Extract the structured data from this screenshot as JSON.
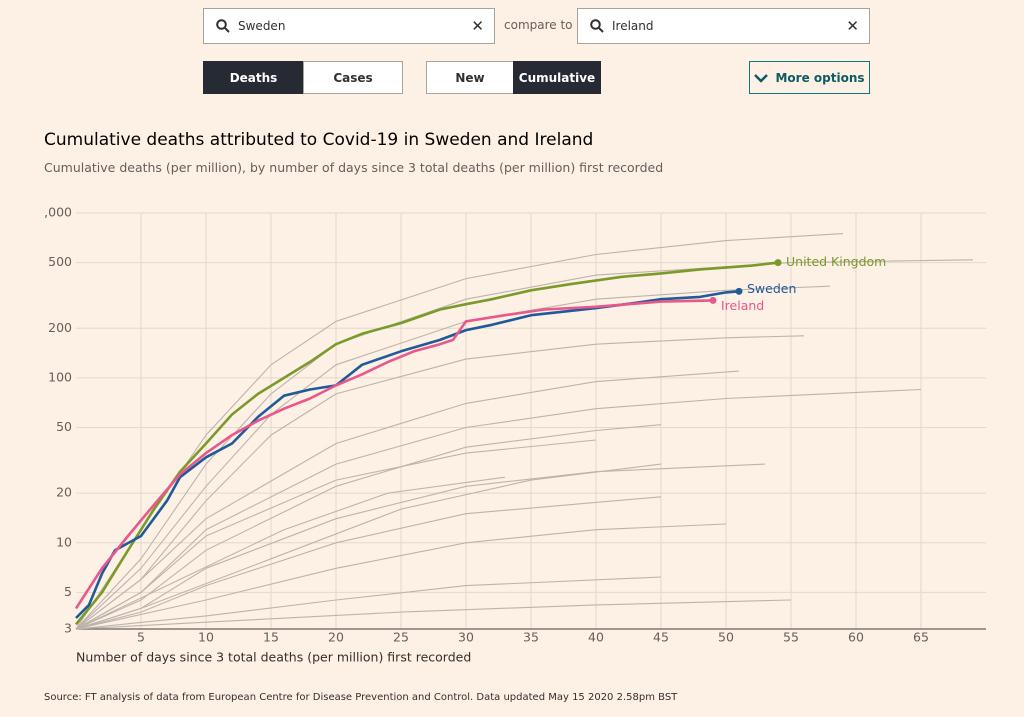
{
  "controls": {
    "search_1": "Sweden",
    "compare_label": "compare to",
    "search_2": "Ireland",
    "metric_buttons": [
      "Deaths",
      "Cases"
    ],
    "mode_buttons": [
      "New",
      "Cumulative"
    ],
    "more_options": "More options"
  },
  "chart_data": {
    "type": "line",
    "title": "Cumulative deaths attributed to Covid-19 in Sweden and Ireland",
    "subtitle": "Cumulative deaths (per million), by number of days since 3 total deaths (per million) first recorded",
    "x_label": "Number of days since 3 total deaths (per million) first recorded",
    "source": "Source: FT analysis of data from European Centre for Disease Prevention and Control. Data updated May 15 2020 2.58pm BST",
    "xlim": [
      0,
      70
    ],
    "xticks": [
      5,
      10,
      15,
      20,
      25,
      30,
      35,
      40,
      45,
      50,
      55,
      60,
      65
    ],
    "ylim": [
      3,
      1000
    ],
    "log_y": true,
    "yticks": [
      3,
      5,
      10,
      20,
      50,
      100,
      200,
      500,
      {
        "value": 1000,
        "label": ",000"
      }
    ],
    "grid": true,
    "background_color": "#bcb4ac",
    "background_lines": [
      {
        "x": [
          0,
          5,
          10,
          15,
          20,
          30,
          40,
          50,
          59
        ],
        "values": [
          3,
          12,
          45,
          120,
          220,
          400,
          560,
          680,
          750
        ]
      },
      {
        "x": [
          0,
          5,
          10,
          15,
          20,
          30,
          40,
          55,
          69
        ],
        "values": [
          3,
          8,
          30,
          80,
          160,
          300,
          420,
          500,
          520
        ]
      },
      {
        "x": [
          0,
          5,
          10,
          15,
          20,
          30,
          40,
          50,
          58
        ],
        "values": [
          3,
          7,
          22,
          60,
          120,
          220,
          300,
          340,
          360
        ]
      },
      {
        "x": [
          0,
          5,
          10,
          15,
          20,
          30,
          40,
          50,
          56
        ],
        "values": [
          3,
          6,
          18,
          45,
          80,
          130,
          160,
          175,
          180
        ]
      },
      {
        "x": [
          0,
          5,
          10,
          20,
          30,
          40,
          50,
          65
        ],
        "values": [
          3,
          5,
          12,
          30,
          50,
          65,
          75,
          85
        ]
      },
      {
        "x": [
          0,
          5,
          10,
          20,
          30,
          40,
          51
        ],
        "values": [
          3,
          6,
          14,
          40,
          70,
          95,
          110
        ]
      },
      {
        "x": [
          0,
          5,
          10,
          20,
          30,
          40,
          45
        ],
        "values": [
          3,
          4.5,
          9,
          22,
          38,
          48,
          52
        ]
      },
      {
        "x": [
          0,
          5,
          10,
          20,
          30,
          40,
          53
        ],
        "values": [
          3,
          4,
          7,
          14,
          22,
          27,
          30
        ]
      },
      {
        "x": [
          0,
          5,
          10,
          20,
          30,
          45
        ],
        "values": [
          3,
          3.8,
          5.5,
          10,
          15,
          19
        ]
      },
      {
        "x": [
          0,
          10,
          20,
          30,
          40,
          50
        ],
        "values": [
          3,
          4.5,
          7,
          10,
          12,
          13
        ]
      },
      {
        "x": [
          0,
          10,
          20,
          30,
          45
        ],
        "values": [
          3,
          3.6,
          4.5,
          5.5,
          6.2
        ]
      },
      {
        "x": [
          0,
          10,
          25,
          40,
          55
        ],
        "values": [
          3,
          3.3,
          3.8,
          4.2,
          4.5
        ]
      },
      {
        "x": [
          0,
          5,
          10,
          20,
          30,
          40
        ],
        "values": [
          3,
          5,
          11,
          24,
          35,
          42
        ]
      },
      {
        "x": [
          0,
          5,
          15,
          25,
          35,
          45
        ],
        "values": [
          3,
          4,
          8,
          16,
          24,
          30
        ]
      },
      {
        "x": [
          0,
          8,
          16,
          24,
          33
        ],
        "values": [
          3,
          6,
          12,
          20,
          25
        ]
      }
    ],
    "series": [
      {
        "name": "United Kingdom",
        "color": "#7a9a2a",
        "x": [
          0,
          2,
          4,
          6,
          8,
          10,
          12,
          14,
          16,
          18,
          20,
          22,
          25,
          28,
          30,
          32,
          35,
          38,
          42,
          45,
          48,
          52,
          54
        ],
        "values": [
          3.2,
          5,
          9,
          16,
          27,
          40,
          60,
          80,
          100,
          125,
          160,
          185,
          215,
          260,
          280,
          300,
          340,
          370,
          410,
          430,
          455,
          480,
          500
        ]
      },
      {
        "name": "Sweden",
        "color": "#1f5a99",
        "x": [
          0,
          1,
          2,
          3,
          5,
          7,
          8,
          10,
          12,
          14,
          16,
          18,
          20,
          22,
          25,
          28,
          30,
          32,
          35,
          38,
          40,
          43,
          45,
          48,
          50,
          51
        ],
        "values": [
          3.5,
          4.2,
          6.5,
          9,
          11,
          18,
          25,
          33,
          40,
          58,
          78,
          85,
          90,
          120,
          145,
          170,
          195,
          210,
          240,
          255,
          265,
          285,
          300,
          310,
          330,
          335
        ]
      },
      {
        "name": "Ireland",
        "color": "#e8588a",
        "x": [
          0,
          2,
          4,
          6,
          8,
          10,
          12,
          14,
          16,
          18,
          20,
          22,
          24,
          26,
          28,
          29,
          30,
          33,
          36,
          40,
          45,
          49
        ],
        "values": [
          4,
          7,
          11,
          17,
          26,
          35,
          45,
          55,
          65,
          75,
          90,
          105,
          125,
          145,
          160,
          170,
          220,
          240,
          260,
          270,
          290,
          295
        ]
      }
    ]
  }
}
